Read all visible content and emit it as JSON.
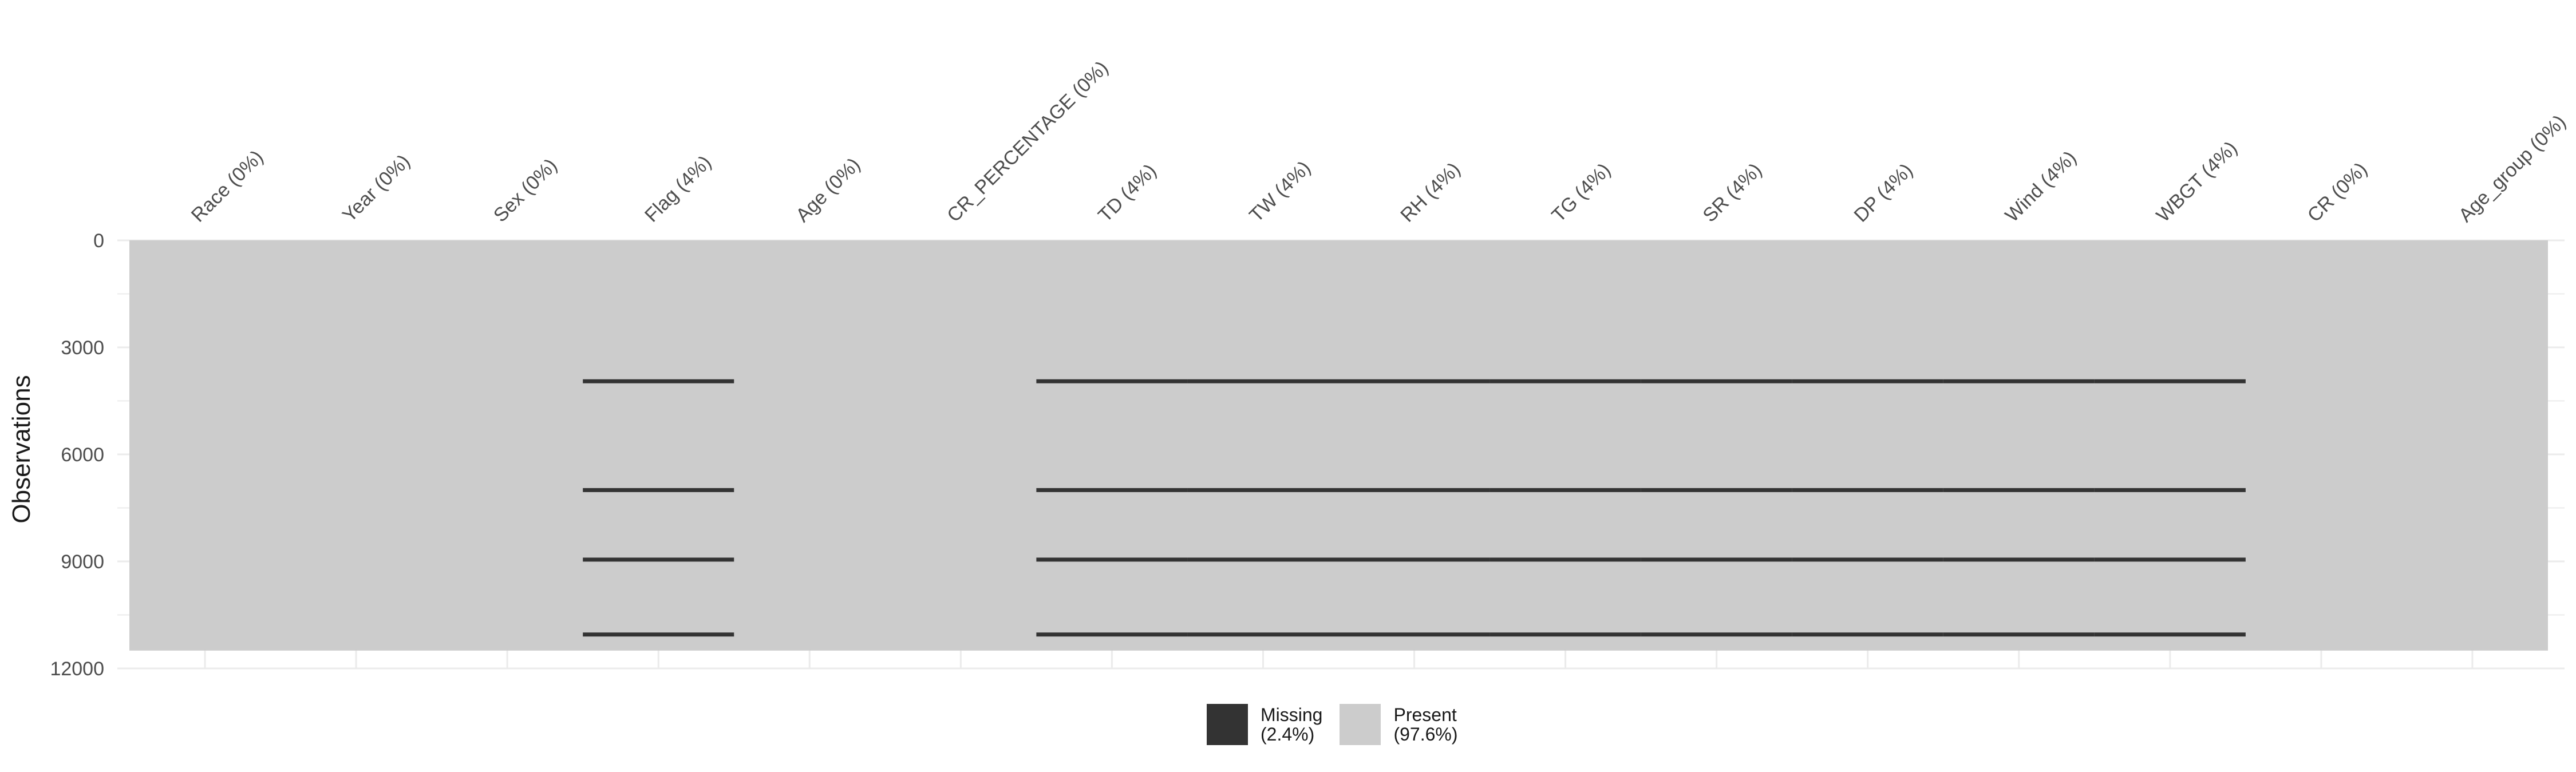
{
  "chart_data": {
    "type": "heatmap",
    "title": "",
    "xlabel": "",
    "ylabel": "Observations",
    "ylim": [
      0,
      12000
    ],
    "y_reversed": true,
    "total_rows": 11500,
    "y_ticks": [
      "0",
      "3000",
      "6000",
      "9000",
      "12000"
    ],
    "y_tick_values": [
      0,
      3000,
      6000,
      9000,
      12000
    ],
    "grid": true,
    "legend_position": "bottom",
    "columns": [
      {
        "name": "Race",
        "label": "Race (0%)",
        "missing_pct": 0
      },
      {
        "name": "Year",
        "label": "Year (0%)",
        "missing_pct": 0
      },
      {
        "name": "Sex",
        "label": "Sex (0%)",
        "missing_pct": 0
      },
      {
        "name": "Flag",
        "label": "Flag (4%)",
        "missing_pct": 4
      },
      {
        "name": "Age",
        "label": "Age (0%)",
        "missing_pct": 0
      },
      {
        "name": "CR_PERCENTAGE",
        "label": "CR_PERCENTAGE (0%)",
        "missing_pct": 0
      },
      {
        "name": "TD",
        "label": "TD (4%)",
        "missing_pct": 4
      },
      {
        "name": "TW",
        "label": "TW (4%)",
        "missing_pct": 4
      },
      {
        "name": "RH",
        "label": "RH (4%)",
        "missing_pct": 4
      },
      {
        "name": "TG",
        "label": "TG (4%)",
        "missing_pct": 4
      },
      {
        "name": "SR",
        "label": "SR (4%)",
        "missing_pct": 4
      },
      {
        "name": "DP",
        "label": "DP (4%)",
        "missing_pct": 4
      },
      {
        "name": "Wind",
        "label": "Wind (4%)",
        "missing_pct": 4
      },
      {
        "name": "WBGT",
        "label": "WBGT (4%)",
        "missing_pct": 4
      },
      {
        "name": "CR",
        "label": "CR (0%)",
        "missing_pct": 0
      },
      {
        "name": "Age_group",
        "label": "Age_group (0%)",
        "missing_pct": 0
      }
    ],
    "missing_rows": [
      3950,
      7000,
      8950,
      11050
    ],
    "missing_columns": [
      "Flag",
      "TD",
      "TW",
      "RH",
      "TG",
      "SR",
      "DP",
      "Wind",
      "WBGT"
    ],
    "legend": [
      {
        "label": "Missing",
        "pct": "(2.4%)",
        "color": "#333333"
      },
      {
        "label": "Present",
        "pct": "(97.6%)",
        "color": "#cccccc"
      }
    ]
  },
  "colors": {
    "missing": "#333333",
    "present": "#cccccc",
    "grid": "#ebebeb",
    "text": "#4d4d4d"
  }
}
